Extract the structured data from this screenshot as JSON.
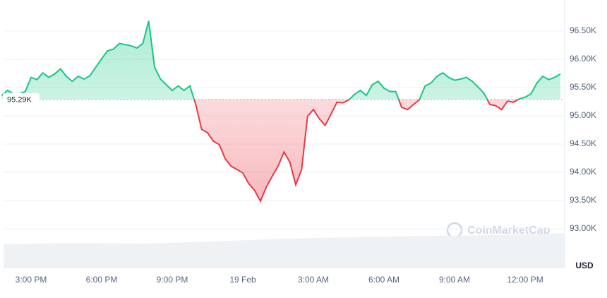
{
  "chart_data": {
    "type": "line",
    "categories": [
      null,
      null,
      null,
      null,
      null,
      "3:00 PM",
      null,
      null,
      null,
      null,
      null,
      null,
      null,
      null,
      null,
      null,
      null,
      "6:00 PM",
      null,
      null,
      null,
      null,
      null,
      null,
      null,
      null,
      null,
      null,
      null,
      "9:00 PM",
      null,
      null,
      null,
      null,
      null,
      null,
      null,
      null,
      null,
      null,
      null,
      "19 Feb",
      null,
      null,
      null,
      null,
      null,
      null,
      null,
      null,
      null,
      null,
      null,
      "3:00 AM",
      null,
      null,
      null,
      null,
      null,
      null,
      null,
      null,
      null,
      null,
      null,
      "6:00 AM",
      null,
      null,
      null,
      null,
      null,
      null,
      null,
      null,
      null,
      null,
      null,
      "9:00 AM",
      null,
      null,
      null,
      null,
      null,
      null,
      null,
      null,
      null,
      null,
      null,
      "12:00 PM",
      null,
      null,
      null,
      null,
      null,
      null
    ],
    "values": [
      95.36,
      95.45,
      95.39,
      95.39,
      95.43,
      95.68,
      95.64,
      95.76,
      95.68,
      95.74,
      95.83,
      95.7,
      95.61,
      95.7,
      95.65,
      95.71,
      95.86,
      96.01,
      96.15,
      96.18,
      96.28,
      96.26,
      96.24,
      96.2,
      96.28,
      96.68,
      95.86,
      95.65,
      95.55,
      95.45,
      95.53,
      95.45,
      95.53,
      95.2,
      94.76,
      94.7,
      94.55,
      94.49,
      94.24,
      94.11,
      94.05,
      93.99,
      93.8,
      93.68,
      93.49,
      93.74,
      93.93,
      94.11,
      94.36,
      94.18,
      93.78,
      94.05,
      94.99,
      95.11,
      94.95,
      94.83,
      95.03,
      95.24,
      95.23,
      95.28,
      95.38,
      95.45,
      95.36,
      95.55,
      95.61,
      95.49,
      95.43,
      95.43,
      95.15,
      95.11,
      95.2,
      95.28,
      95.53,
      95.58,
      95.7,
      95.76,
      95.68,
      95.63,
      95.65,
      95.68,
      95.61,
      95.51,
      95.4,
      95.2,
      95.18,
      95.11,
      95.26,
      95.24,
      95.3,
      95.33,
      95.39,
      95.58,
      95.7,
      95.64,
      95.68,
      95.74
    ],
    "baseline": {
      "value": 95.29,
      "label": "95.29K"
    },
    "up_color": "#16c784",
    "down_color": "#ea3943",
    "ylim": [
      92.3,
      97.0
    ],
    "yticks": [
      {
        "value": 93.0,
        "label": "93.00K"
      },
      {
        "value": 93.5,
        "label": "93.50K"
      },
      {
        "value": 94.0,
        "label": "94.00K"
      },
      {
        "value": 94.5,
        "label": "94.50K"
      },
      {
        "value": 95.0,
        "label": "95.00K"
      },
      {
        "value": 95.5,
        "label": "95.50K"
      },
      {
        "value": 96.0,
        "label": "96.00K"
      },
      {
        "value": 96.5,
        "label": "96.50K"
      }
    ],
    "grid": true,
    "currency": "USD",
    "watermark": "CoinMarketCap"
  }
}
